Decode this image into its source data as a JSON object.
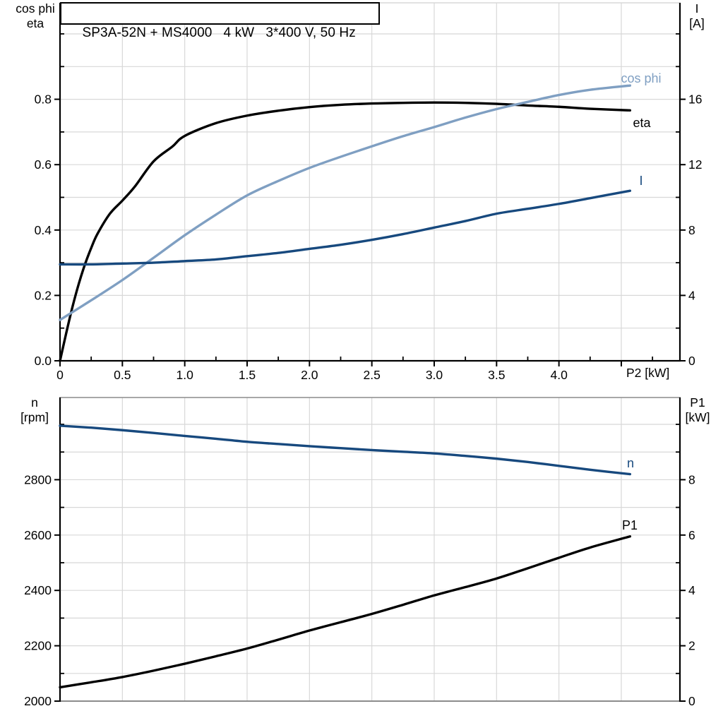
{
  "title": "SP3A-52N + MS4000   4 kW   3*400 V, 50 Hz",
  "axis_corner_labels": {
    "top_left_line1": "cos phi",
    "top_left_line2": "eta",
    "top_right_line1": "I",
    "top_right_line2": "[A]",
    "bottom_left_line1": "n",
    "bottom_left_line2": "[rpm]",
    "bottom_right_line1": "P1",
    "bottom_right_line2": "[kW]"
  },
  "colors": {
    "black": "#000000",
    "dark_blue": "#17497E",
    "light_blue": "#7F9FC2",
    "grid": "#D8D8D8",
    "frame": "#8C8C8C"
  },
  "chart_data": [
    {
      "id": "top-chart-cosphi-eta-current",
      "type": "line",
      "title": "SP3A-52N + MS4000   4 kW   3*400 V, 50 Hz",
      "xlabel": "P2 [kW]",
      "xlim": [
        0,
        4.97
      ],
      "x_grid_step": 0.5,
      "x_minor_step": 0.25,
      "x_major_ticks": [
        {
          "v": 0,
          "t": "0"
        },
        {
          "v": 0.5,
          "t": "0.5"
        },
        {
          "v": 1,
          "t": "1.0"
        },
        {
          "v": 1.5,
          "t": "1.5"
        },
        {
          "v": 2,
          "t": "2.0"
        },
        {
          "v": 2.5,
          "t": "2.5"
        },
        {
          "v": 3,
          "t": "3.0"
        },
        {
          "v": 3.5,
          "t": "3.5"
        },
        {
          "v": 4,
          "t": "4.0"
        },
        {
          "v": 4.5,
          "t": ""
        }
      ],
      "left_axis": {
        "label": "cos phi / eta",
        "lim": [
          0,
          1.095
        ],
        "minor_step": 0.1,
        "major": [
          {
            "v": 0,
            "t": "0.0"
          },
          {
            "v": 0.2,
            "t": "0.2"
          },
          {
            "v": 0.4,
            "t": "0.4"
          },
          {
            "v": 0.6,
            "t": "0.6"
          },
          {
            "v": 0.8,
            "t": "0.8"
          }
        ]
      },
      "right_axis": {
        "label": "I [A]",
        "lim": [
          0,
          21.9
        ],
        "minor_step": 2,
        "major": [
          {
            "v": 0,
            "t": "0"
          },
          {
            "v": 4,
            "t": "4"
          },
          {
            "v": 8,
            "t": "8"
          },
          {
            "v": 12,
            "t": "12"
          },
          {
            "v": 16,
            "t": "16"
          }
        ]
      },
      "series": [
        {
          "name": "eta",
          "axis": "left",
          "color": "black",
          "points": [
            [
              0,
              0
            ],
            [
              0.05,
              0.085
            ],
            [
              0.1,
              0.165
            ],
            [
              0.15,
              0.235
            ],
            [
              0.2,
              0.295
            ],
            [
              0.25,
              0.345
            ],
            [
              0.3,
              0.388
            ],
            [
              0.4,
              0.45
            ],
            [
              0.5,
              0.49
            ],
            [
              0.6,
              0.533
            ],
            [
              0.75,
              0.61
            ],
            [
              0.9,
              0.655
            ],
            [
              1.0,
              0.688
            ],
            [
              1.25,
              0.727
            ],
            [
              1.5,
              0.75
            ],
            [
              1.75,
              0.765
            ],
            [
              2.0,
              0.776
            ],
            [
              2.25,
              0.783
            ],
            [
              2.5,
              0.787
            ],
            [
              2.75,
              0.789
            ],
            [
              3.0,
              0.79
            ],
            [
              3.25,
              0.789
            ],
            [
              3.5,
              0.786
            ],
            [
              3.75,
              0.781
            ],
            [
              4.0,
              0.777
            ],
            [
              4.25,
              0.771
            ],
            [
              4.57,
              0.766
            ]
          ]
        },
        {
          "name": "cos phi",
          "axis": "left",
          "color": "light_blue",
          "points": [
            [
              0,
              0.125
            ],
            [
              0.25,
              0.185
            ],
            [
              0.5,
              0.247
            ],
            [
              0.75,
              0.315
            ],
            [
              1.0,
              0.384
            ],
            [
              1.25,
              0.447
            ],
            [
              1.5,
              0.506
            ],
            [
              1.75,
              0.55
            ],
            [
              2.0,
              0.59
            ],
            [
              2.25,
              0.624
            ],
            [
              2.5,
              0.656
            ],
            [
              2.75,
              0.687
            ],
            [
              3.0,
              0.715
            ],
            [
              3.25,
              0.744
            ],
            [
              3.5,
              0.77
            ],
            [
              3.75,
              0.792
            ],
            [
              4.0,
              0.813
            ],
            [
              4.25,
              0.829
            ],
            [
              4.57,
              0.842
            ]
          ]
        },
        {
          "name": "I",
          "axis": "right",
          "color": "dark_blue",
          "points": [
            [
              0,
              5.9
            ],
            [
              0.25,
              5.9
            ],
            [
              0.5,
              5.95
            ],
            [
              0.75,
              6.0
            ],
            [
              1.0,
              6.1
            ],
            [
              1.25,
              6.2
            ],
            [
              1.5,
              6.4
            ],
            [
              1.75,
              6.6
            ],
            [
              2.0,
              6.85
            ],
            [
              2.25,
              7.1
            ],
            [
              2.5,
              7.4
            ],
            [
              2.75,
              7.75
            ],
            [
              3.0,
              8.15
            ],
            [
              3.25,
              8.55
            ],
            [
              3.5,
              9.0
            ],
            [
              3.75,
              9.3
            ],
            [
              4.0,
              9.6
            ],
            [
              4.25,
              9.95
            ],
            [
              4.57,
              10.4
            ]
          ]
        }
      ]
    },
    {
      "id": "bottom-chart-speed-power",
      "type": "line",
      "title": "",
      "xlabel": "",
      "xlim": [
        0,
        4.97
      ],
      "x_grid_step": 0.5,
      "x_minor_step": 0,
      "x_major_ticks": [],
      "left_axis": {
        "label": "n [rpm]",
        "lim": [
          2000,
          3097
        ],
        "minor_step": 100,
        "major": [
          {
            "v": 2000,
            "t": "2000"
          },
          {
            "v": 2200,
            "t": "2200"
          },
          {
            "v": 2400,
            "t": "2400"
          },
          {
            "v": 2600,
            "t": "2600"
          },
          {
            "v": 2800,
            "t": "2800"
          }
        ]
      },
      "right_axis": {
        "label": "P1 [kW]",
        "lim": [
          0,
          10.97
        ],
        "minor_step": 1,
        "major": [
          {
            "v": 0,
            "t": "0"
          },
          {
            "v": 2,
            "t": "2"
          },
          {
            "v": 4,
            "t": "4"
          },
          {
            "v": 6,
            "t": "6"
          },
          {
            "v": 8,
            "t": "8"
          }
        ]
      },
      "series": [
        {
          "name": "n",
          "axis": "left",
          "color": "dark_blue",
          "points": [
            [
              0,
              2995
            ],
            [
              0.25,
              2988
            ],
            [
              0.5,
              2979
            ],
            [
              0.75,
              2969
            ],
            [
              1.0,
              2958
            ],
            [
              1.25,
              2948
            ],
            [
              1.5,
              2937
            ],
            [
              1.75,
              2929
            ],
            [
              2.0,
              2921
            ],
            [
              2.25,
              2914
            ],
            [
              2.5,
              2907
            ],
            [
              2.75,
              2901
            ],
            [
              3.0,
              2895
            ],
            [
              3.25,
              2886
            ],
            [
              3.5,
              2876
            ],
            [
              3.75,
              2864
            ],
            [
              4.0,
              2850
            ],
            [
              4.25,
              2836
            ],
            [
              4.57,
              2820
            ]
          ]
        },
        {
          "name": "P1",
          "axis": "right",
          "color": "black",
          "points": [
            [
              0,
              0.5
            ],
            [
              0.25,
              0.68
            ],
            [
              0.5,
              0.87
            ],
            [
              0.75,
              1.1
            ],
            [
              1.0,
              1.35
            ],
            [
              1.25,
              1.62
            ],
            [
              1.5,
              1.9
            ],
            [
              1.75,
              2.22
            ],
            [
              2.0,
              2.55
            ],
            [
              2.25,
              2.85
            ],
            [
              2.5,
              3.15
            ],
            [
              2.75,
              3.48
            ],
            [
              3.0,
              3.82
            ],
            [
              3.25,
              4.12
            ],
            [
              3.5,
              4.43
            ],
            [
              3.75,
              4.8
            ],
            [
              4.0,
              5.18
            ],
            [
              4.25,
              5.55
            ],
            [
              4.57,
              5.95
            ]
          ]
        }
      ]
    }
  ]
}
